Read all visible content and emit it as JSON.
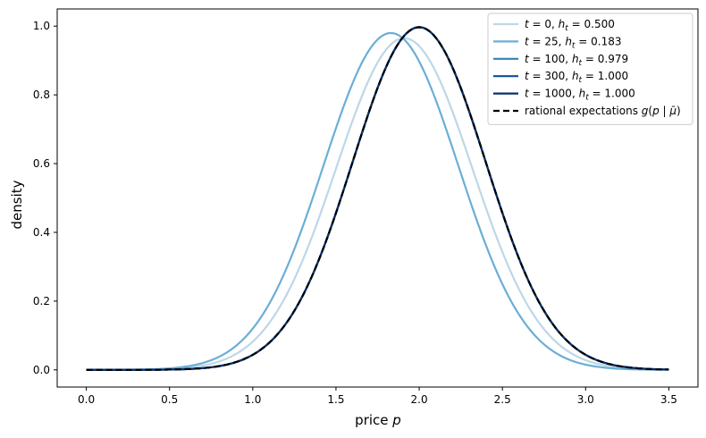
{
  "chart_data": {
    "type": "line",
    "title": "",
    "xlabel": "price p",
    "ylabel": "density",
    "xlim": [
      -0.175,
      3.675
    ],
    "ylim": [
      -0.05,
      1.05
    ],
    "xticks": [
      "0.0",
      "0.5",
      "1.0",
      "1.5",
      "2.0",
      "2.5",
      "3.0",
      "3.5"
    ],
    "yticks": [
      "0.0",
      "0.2",
      "0.4",
      "0.6",
      "0.8",
      "1.0"
    ],
    "grid": false,
    "legend_position": "top-right",
    "x_range": [
      0.0,
      3.5
    ],
    "series": [
      {
        "name": "t = 0, h_t = 0.500",
        "label_parts": {
          "t": "t",
          "eq1": " = 0, ",
          "h": "h",
          "sub": "t",
          "eq2": " = 0.500"
        },
        "color": "#bdd7e7",
        "style": "solid",
        "peak_x": 1.91,
        "peak_y": 0.965,
        "sigma": 0.41
      },
      {
        "name": "t = 25, h_t = 0.183",
        "label_parts": {
          "t": "t",
          "eq1": " = 25, ",
          "h": "h",
          "sub": "t",
          "eq2": " = 0.183"
        },
        "color": "#6baed6",
        "style": "solid",
        "peak_x": 1.83,
        "peak_y": 0.98,
        "sigma": 0.405
      },
      {
        "name": "t = 100, h_t = 0.979",
        "label_parts": {
          "t": "t",
          "eq1": " = 100, ",
          "h": "h",
          "sub": "t",
          "eq2": " = 0.979"
        },
        "color": "#3182bd",
        "style": "solid",
        "peak_x": 2.0,
        "peak_y": 0.997,
        "sigma": 0.4
      },
      {
        "name": "t = 300, h_t = 1.000",
        "label_parts": {
          "t": "t",
          "eq1": " = 300, ",
          "h": "h",
          "sub": "t",
          "eq2": " = 1.000"
        },
        "color": "#08519c",
        "style": "solid",
        "peak_x": 2.0,
        "peak_y": 0.997,
        "sigma": 0.4
      },
      {
        "name": "t = 1000, h_t = 1.000",
        "label_parts": {
          "t": "t",
          "eq1": " = 1000, ",
          "h": "h",
          "sub": "t",
          "eq2": " = 1.000"
        },
        "color": "#08306b",
        "style": "solid",
        "peak_x": 2.0,
        "peak_y": 0.997,
        "sigma": 0.4
      },
      {
        "name": "rational expectations g(p | μ̄)",
        "label_parts": {
          "pre": "rational expectations ",
          "g": "g",
          "open": "(",
          "p": "p",
          "mid": " | ",
          "mu": "μ̄",
          "close": ")"
        },
        "color": "#000000",
        "style": "dashed",
        "peak_x": 2.0,
        "peak_y": 0.997,
        "sigma": 0.4
      }
    ]
  }
}
